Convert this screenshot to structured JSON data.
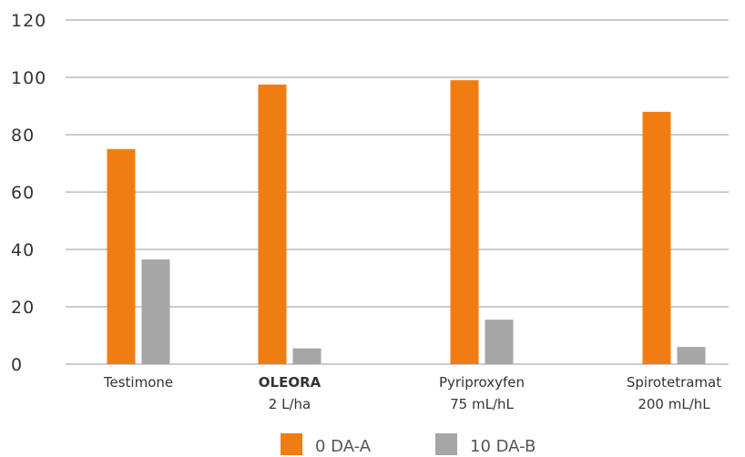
{
  "chart_data": {
    "type": "bar",
    "title": "",
    "xlabel": "",
    "ylabel": "",
    "ylim": [
      0,
      120
    ],
    "yticks": [
      "0",
      "20",
      "40",
      "60",
      "80",
      "100",
      "120"
    ],
    "grid": true,
    "legend_position": "bottom",
    "categories": [
      {
        "line1": "Testimone",
        "line2": "",
        "bold": false
      },
      {
        "line1": "OLEORA",
        "line2": "2 L/ha",
        "bold": true
      },
      {
        "line1": "Pyriproxyfen",
        "line2": "75 mL/hL",
        "bold": false
      },
      {
        "line1": "Spirotetramat",
        "line2": "200 mL/hL",
        "bold": false
      }
    ],
    "series": [
      {
        "name": "0 DA-A",
        "color": "#f07d12",
        "values": [
          75,
          97.5,
          99,
          88
        ]
      },
      {
        "name": "10 DA-B",
        "color": "#a6a6a6",
        "values": [
          36.5,
          5.5,
          15.5,
          6
        ]
      }
    ]
  }
}
